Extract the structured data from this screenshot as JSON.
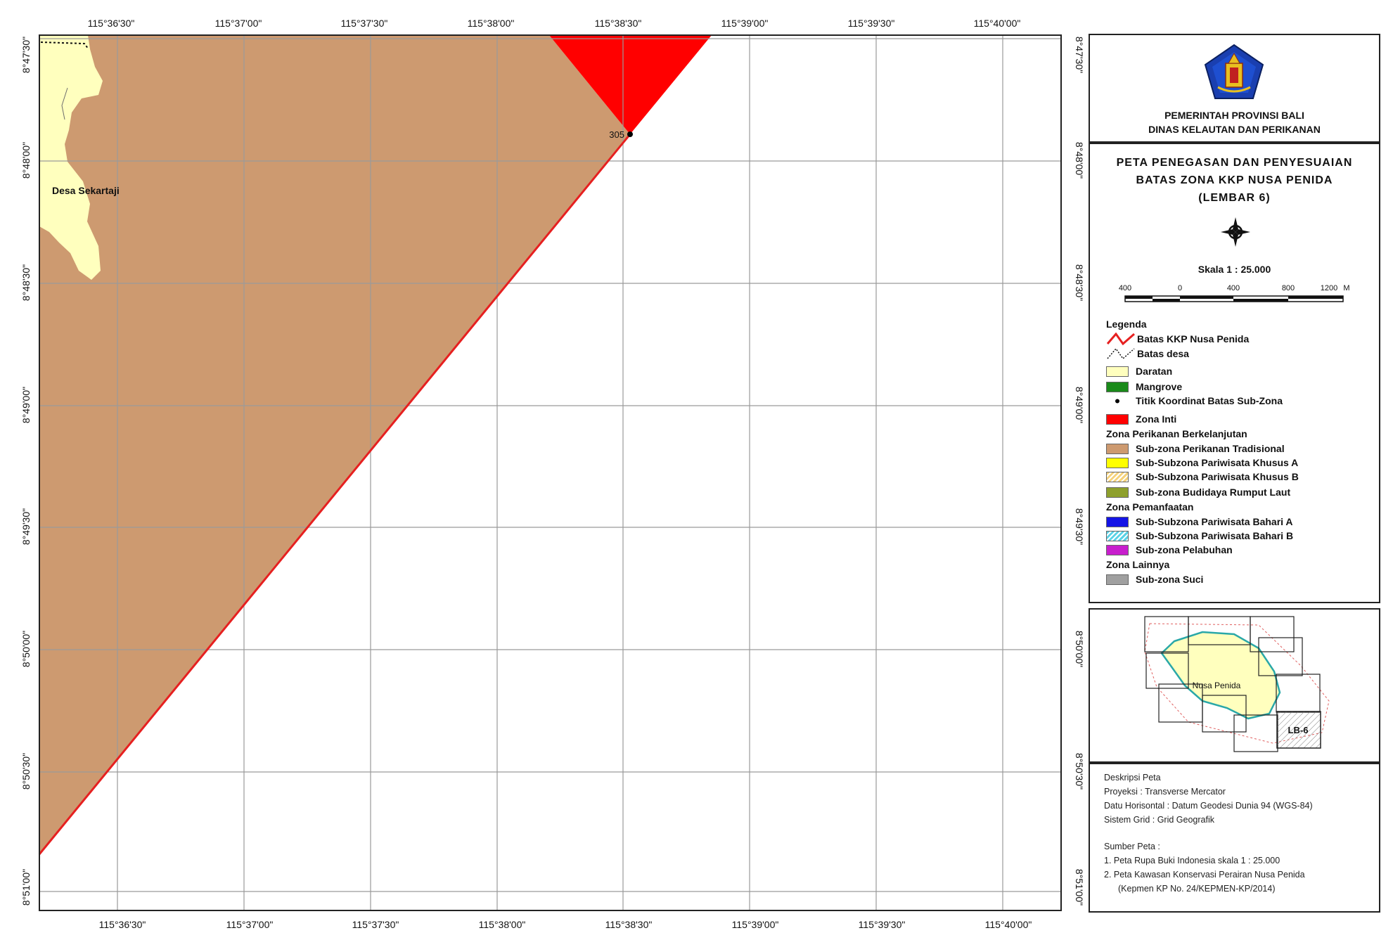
{
  "map": {
    "top_lon_labels": [
      "115°36'30\"",
      "115°37'00\"",
      "115°37'30\"",
      "115°38'00\"",
      "115°38'30\"",
      "115°39'00\"",
      "115°39'30\"",
      "115°40'00\""
    ],
    "bottom_lon_labels": [
      "115°36'30\"",
      "115°37'00\"",
      "115°37'30\"",
      "115°38'00\"",
      "115°38'30\"",
      "115°39'00\"",
      "115°39'30\"",
      "115°40'00\""
    ],
    "lat_labels": [
      "8°47'30\"",
      "8°48'00\"",
      "8°48'30\"",
      "8°49'00\"",
      "8°49'30\"",
      "8°50'00\"",
      "8°50'30\"",
      "8°51'00\""
    ],
    "point_label": "305",
    "village_label": "Desa Sekartaji"
  },
  "header": {
    "org_line1": "PEMERINTAH PROVINSI BALI",
    "org_line2": "DINAS KELAUTAN DAN PERIKANAN"
  },
  "title": {
    "line1": "PETA PENEGASAN DAN PENYESUAIAN",
    "line2": "BATAS ZONA KKP NUSA PENIDA",
    "line3": "(LEMBAR 6)"
  },
  "scale": {
    "label": "Skala 1 : 25.000",
    "ticks": [
      "400",
      "0",
      "400",
      "800",
      "1200",
      "M"
    ]
  },
  "legend": {
    "heading": "Legenda",
    "items": [
      {
        "label": "Batas KKP Nusa Penida",
        "kind": "redline",
        "color": "#e62020"
      },
      {
        "label": "Batas desa",
        "kind": "dashline",
        "color": "#111111"
      },
      {
        "label": "Daratan",
        "kind": "swatch",
        "color": "#ffffbe"
      },
      {
        "label": "Mangrove",
        "kind": "swatch",
        "color": "#1a8a1a"
      },
      {
        "label": "Titik Koordinat Batas Sub-Zona",
        "kind": "dot",
        "color": "#000000"
      },
      {
        "label": "Zona Inti",
        "kind": "swatch",
        "color": "#ff0000"
      }
    ],
    "group1_heading": "Zona Perikanan Berkelanjutan",
    "group1": [
      {
        "label": "Sub-zona Perikanan Tradisional",
        "kind": "swatch",
        "color": "#cd9a70"
      },
      {
        "label": "Sub-Subzona Pariwisata Khusus A",
        "kind": "swatch",
        "color": "#ffff00"
      },
      {
        "label": "Sub-Subzona Pariwisata Khusus B",
        "kind": "hatch",
        "color": "#f5d27a"
      },
      {
        "label": "Sub-zona Budidaya Rumput Laut",
        "kind": "swatch",
        "color": "#8ea02c"
      }
    ],
    "group2_heading": "Zona Pemanfaatan",
    "group2": [
      {
        "label": "Sub-Subzona Pariwisata Bahari A",
        "kind": "swatch",
        "color": "#1414e6"
      },
      {
        "label": "Sub-Subzona Pariwisata Bahari B",
        "kind": "hatch",
        "color": "#5ad2e6"
      },
      {
        "label": "Sub-zona Pelabuhan",
        "kind": "swatch",
        "color": "#c81ecd"
      }
    ],
    "group3_heading": "Zona Lainnya",
    "group3": [
      {
        "label": "Sub-zona Suci",
        "kind": "swatch",
        "color": "#a0a0a0"
      }
    ]
  },
  "inset": {
    "island_label": "Nusa Penida",
    "sheet_label": "LB-6"
  },
  "description": {
    "heading": "Deskripsi Peta",
    "proj": "Proyeksi  : Transverse Mercator",
    "datum": "Datu Horisontal : Datum Geodesi Dunia 94 (WGS-84)",
    "grid": "Sistem Grid : Grid Geografik",
    "source_heading": "Sumber Peta :",
    "source1": "1.  Peta Rupa Buki Indonesia skala 1 : 25.000",
    "source2": "2.  Peta Kawasan Konservasi Perairan Nusa Penida",
    "source3": "(Kepmen KP No. 24/KEPMEN-KP/2014)"
  },
  "colors": {
    "traditional_fishing": "#cd9a70",
    "core_zone": "#ff0000",
    "land": "#ffffbe",
    "boundary": "#e62020",
    "grid": "#9a9a9a"
  }
}
